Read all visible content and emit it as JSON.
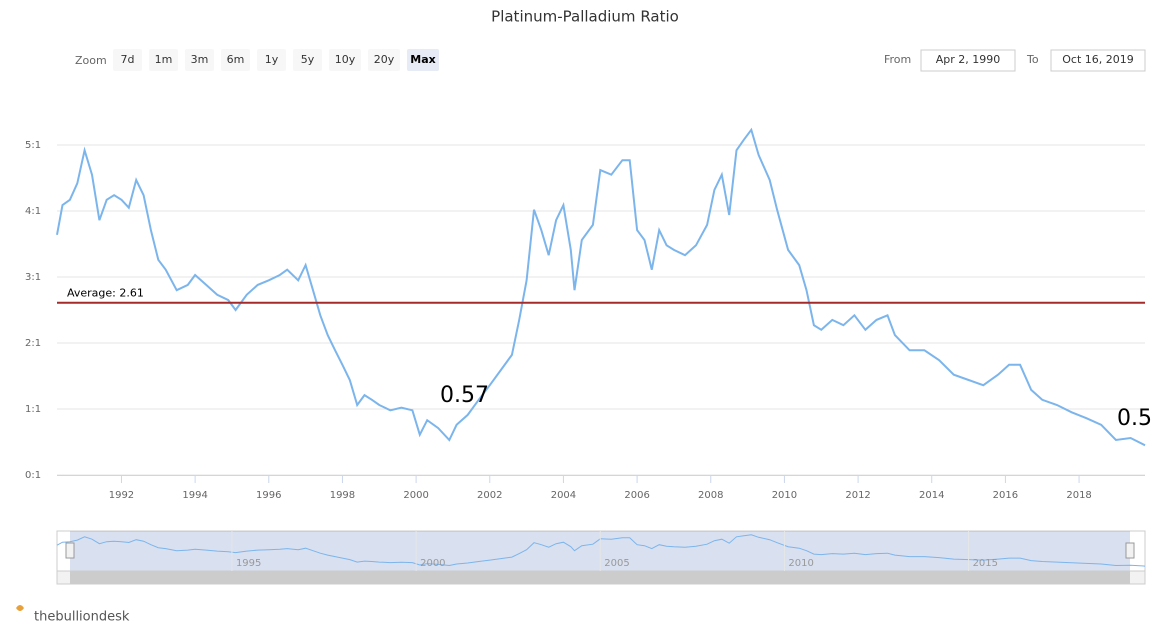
{
  "chart_data": {
    "type": "line",
    "title": "Platinum-Palladium Ratio",
    "zoom_label": "Zoom",
    "zoom_buttons": [
      "7d",
      "1m",
      "3m",
      "6m",
      "1y",
      "5y",
      "10y",
      "20y",
      "Max"
    ],
    "selected_button": "Max",
    "from_label": "From",
    "from": "Apr 2, 1990",
    "to_label": "To",
    "to": "Oct 16, 2019",
    "color": "#7cb5ec",
    "x": [
      1990.25,
      1990.4,
      1990.6,
      1990.8,
      1991.0,
      1991.2,
      1991.4,
      1991.6,
      1991.8,
      1992.0,
      1992.2,
      1992.4,
      1992.6,
      1992.8,
      1993.0,
      1993.2,
      1993.5,
      1993.8,
      1994.0,
      1994.3,
      1994.6,
      1994.9,
      1995.1,
      1995.4,
      1995.7,
      1996.0,
      1996.3,
      1996.5,
      1996.8,
      1997.0,
      1997.2,
      1997.4,
      1997.6,
      1997.8,
      1998.0,
      1998.2,
      1998.4,
      1998.6,
      1998.8,
      1999.0,
      1999.3,
      1999.6,
      1999.9,
      2000.1,
      2000.3,
      2000.6,
      2000.9,
      2001.1,
      2001.4,
      2001.7,
      2002.0,
      2002.3,
      2002.6,
      2002.8,
      2003.0,
      2003.2,
      2003.4,
      2003.6,
      2003.8,
      2004.0,
      2004.2,
      2004.3,
      2004.5,
      2004.8,
      2005.0,
      2005.3,
      2005.6,
      2005.8,
      2006.0,
      2006.2,
      2006.4,
      2006.6,
      2006.8,
      2007.0,
      2007.3,
      2007.6,
      2007.9,
      2008.1,
      2008.3,
      2008.5,
      2008.7,
      2008.9,
      2009.1,
      2009.3,
      2009.6,
      2009.8,
      2010.1,
      2010.4,
      2010.6,
      2010.8,
      2011.0,
      2011.3,
      2011.6,
      2011.9,
      2012.2,
      2012.5,
      2012.8,
      2013.0,
      2013.4,
      2013.8,
      2014.2,
      2014.6,
      2015.0,
      2015.4,
      2015.8,
      2016.1,
      2016.4,
      2016.7,
      2017.0,
      2017.4,
      2017.8,
      2018.2,
      2018.6,
      2019.0,
      2019.4,
      2019.79
    ],
    "values": [
      3.64,
      4.09,
      4.17,
      4.42,
      4.92,
      4.55,
      3.86,
      4.17,
      4.24,
      4.17,
      4.05,
      4.47,
      4.24,
      3.71,
      3.26,
      3.11,
      2.8,
      2.88,
      3.03,
      2.88,
      2.73,
      2.65,
      2.5,
      2.73,
      2.88,
      2.95,
      3.03,
      3.11,
      2.95,
      3.18,
      2.8,
      2.42,
      2.12,
      1.89,
      1.67,
      1.44,
      1.06,
      1.21,
      1.14,
      1.06,
      0.98,
      1.02,
      0.98,
      0.61,
      0.83,
      0.71,
      0.53,
      0.76,
      0.91,
      1.14,
      1.36,
      1.59,
      1.82,
      2.35,
      2.95,
      4.02,
      3.71,
      3.33,
      3.86,
      4.09,
      3.41,
      2.8,
      3.56,
      3.79,
      4.62,
      4.55,
      4.77,
      4.77,
      3.71,
      3.56,
      3.11,
      3.71,
      3.48,
      3.41,
      3.33,
      3.48,
      3.79,
      4.32,
      4.55,
      3.94,
      4.92,
      5.08,
      5.23,
      4.85,
      4.47,
      4.02,
      3.41,
      3.18,
      2.8,
      2.27,
      2.2,
      2.35,
      2.27,
      2.42,
      2.2,
      2.35,
      2.42,
      2.12,
      1.89,
      1.89,
      1.74,
      1.52,
      1.44,
      1.36,
      1.52,
      1.67,
      1.67,
      1.29,
      1.14,
      1.06,
      0.95,
      0.86,
      0.76,
      0.53,
      0.56,
      0.45
    ],
    "xlim": [
      1990.25,
      2019.79
    ],
    "xticks": [
      1992,
      1994,
      1996,
      1998,
      2000,
      2002,
      2004,
      2006,
      2008,
      2010,
      2012,
      2014,
      2016,
      2018
    ],
    "ylim": [
      0,
      5.5
    ],
    "yticks": [
      {
        "value": 0,
        "label": "0:1"
      },
      {
        "value": 1,
        "label": "1:1"
      },
      {
        "value": 2,
        "label": "2:1"
      },
      {
        "value": 3,
        "label": "3:1"
      },
      {
        "value": 4,
        "label": "4:1"
      },
      {
        "value": 5,
        "label": "5:1"
      }
    ],
    "grid": true,
    "average": {
      "value": 2.61,
      "label": "Average: 2.61",
      "color": "#a52a2a"
    },
    "annotations": [
      "0.57",
      "0.5"
    ],
    "navigator_ticks": [
      1995,
      2000,
      2005,
      2010,
      2015
    ],
    "logo": "thebulliondesk"
  }
}
